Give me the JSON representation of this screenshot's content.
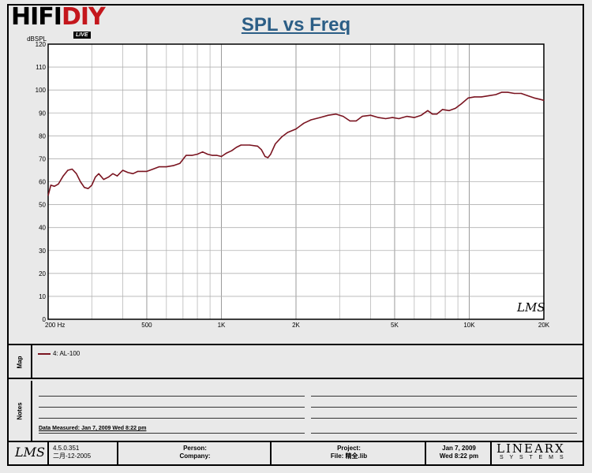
{
  "header": {
    "brand": "HIFIDIY",
    "brand_part1": "HIFI",
    "brand_part2": "DIY",
    "brand_badge": "LIVE",
    "title": "SPL vs Freq"
  },
  "chart_data": {
    "type": "line",
    "title": "SPL vs Freq",
    "ylabel": "dBSPL",
    "xlabel": "",
    "x_scale": "log",
    "xlim": [
      200,
      20000
    ],
    "ylim": [
      0,
      120
    ],
    "grid": true,
    "x_tick_labels": [
      {
        "value": 200,
        "label": "200  Hz"
      },
      {
        "value": 500,
        "label": "500"
      },
      {
        "value": 1000,
        "label": "1K"
      },
      {
        "value": 2000,
        "label": "2K"
      },
      {
        "value": 5000,
        "label": "5K"
      },
      {
        "value": 10000,
        "label": "10K"
      },
      {
        "value": 20000,
        "label": "20K"
      }
    ],
    "y_ticks": [
      0,
      10,
      20,
      30,
      40,
      50,
      60,
      70,
      80,
      90,
      100,
      110,
      120
    ],
    "series": [
      {
        "name": "4: AL-100",
        "color": "#7a1420",
        "points": [
          [
            200,
            54
          ],
          [
            205,
            58.5
          ],
          [
            212,
            58
          ],
          [
            220,
            59
          ],
          [
            230,
            62.5
          ],
          [
            240,
            65
          ],
          [
            250,
            65.5
          ],
          [
            260,
            63.5
          ],
          [
            270,
            60
          ],
          [
            280,
            57.5
          ],
          [
            290,
            57
          ],
          [
            300,
            58.5
          ],
          [
            310,
            62
          ],
          [
            320,
            63.5
          ],
          [
            335,
            61
          ],
          [
            350,
            62
          ],
          [
            365,
            63.5
          ],
          [
            380,
            62.5
          ],
          [
            400,
            65
          ],
          [
            420,
            64
          ],
          [
            440,
            63.5
          ],
          [
            460,
            64.5
          ],
          [
            480,
            64.5
          ],
          [
            500,
            64.5
          ],
          [
            530,
            65.5
          ],
          [
            560,
            66.5
          ],
          [
            600,
            66.5
          ],
          [
            640,
            67
          ],
          [
            680,
            68
          ],
          [
            720,
            71.5
          ],
          [
            760,
            71.5
          ],
          [
            800,
            72
          ],
          [
            840,
            73
          ],
          [
            880,
            72
          ],
          [
            920,
            71.5
          ],
          [
            960,
            71.5
          ],
          [
            1000,
            71
          ],
          [
            1050,
            72.5
          ],
          [
            1100,
            73.5
          ],
          [
            1150,
            75
          ],
          [
            1200,
            76
          ],
          [
            1300,
            76
          ],
          [
            1400,
            75.5
          ],
          [
            1450,
            74
          ],
          [
            1500,
            71
          ],
          [
            1540,
            70.5
          ],
          [
            1580,
            72
          ],
          [
            1650,
            76.5
          ],
          [
            1750,
            79.5
          ],
          [
            1850,
            81.5
          ],
          [
            2000,
            83
          ],
          [
            2150,
            85.5
          ],
          [
            2300,
            87
          ],
          [
            2500,
            88
          ],
          [
            2700,
            89
          ],
          [
            2900,
            89.5
          ],
          [
            3100,
            88.5
          ],
          [
            3300,
            86.5
          ],
          [
            3500,
            86.5
          ],
          [
            3700,
            88.5
          ],
          [
            4000,
            89
          ],
          [
            4300,
            88
          ],
          [
            4600,
            87.5
          ],
          [
            4900,
            88
          ],
          [
            5200,
            87.5
          ],
          [
            5600,
            88.5
          ],
          [
            6000,
            88
          ],
          [
            6400,
            89
          ],
          [
            6800,
            91
          ],
          [
            7100,
            89.5
          ],
          [
            7400,
            89.5
          ],
          [
            7800,
            91.5
          ],
          [
            8300,
            91
          ],
          [
            8800,
            92
          ],
          [
            9300,
            94
          ],
          [
            9900,
            96.5
          ],
          [
            10500,
            97
          ],
          [
            11200,
            97
          ],
          [
            12000,
            97.5
          ],
          [
            12800,
            98
          ],
          [
            13500,
            99
          ],
          [
            14300,
            99
          ],
          [
            15200,
            98.5
          ],
          [
            16200,
            98.5
          ],
          [
            17200,
            97.5
          ],
          [
            18300,
            96.5
          ],
          [
            19200,
            96
          ],
          [
            20000,
            95.5
          ]
        ]
      }
    ],
    "watermark": "LMS"
  },
  "map": {
    "section_label": "Map",
    "legend_entry": "4:  AL-100"
  },
  "notes": {
    "section_label": "Notes",
    "data_measured": "Data Measured: Jan  7, 2009  Wed  8:22 pm"
  },
  "footer": {
    "logo": "LMS",
    "version": "4.5.0.351",
    "version_date": "二月-12-2005",
    "person_label": "Person:",
    "company_label": "Company:",
    "project_label": "Project:",
    "file_label": "File: 精全.lib",
    "date": "Jan  7, 2009",
    "time": "Wed  8:22 pm",
    "brand_main": "LINEARX",
    "brand_sub": "S Y S T E M S"
  }
}
